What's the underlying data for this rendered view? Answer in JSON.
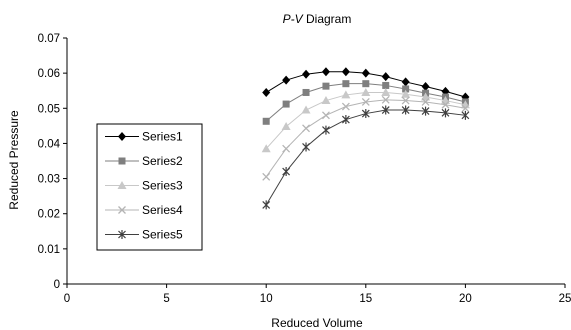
{
  "chart_data": {
    "type": "scatter",
    "title_italic": "P-V",
    "title_rest": " Diagram",
    "xlabel": "Reduced Volume",
    "ylabel": "Reduced Pressure",
    "xlim": [
      0,
      25
    ],
    "ylim": [
      0,
      0.07
    ],
    "xticks": [
      "0",
      "5",
      "10",
      "15",
      "20",
      "25"
    ],
    "yticks": [
      "0",
      "0.01",
      "0.02",
      "0.03",
      "0.04",
      "0.05",
      "0.06",
      "0.07"
    ],
    "grid": false,
    "legend_position": "left",
    "x": [
      10,
      11,
      12,
      13,
      14,
      15,
      16,
      17,
      18,
      19,
      20
    ],
    "series": [
      {
        "name": "Series1",
        "marker": "diamond",
        "color": "#000000",
        "values": [
          0.0545,
          0.058,
          0.0597,
          0.0604,
          0.0604,
          0.06,
          0.059,
          0.0575,
          0.0562,
          0.0548,
          0.0532
        ]
      },
      {
        "name": "Series2",
        "marker": "square",
        "color": "#7f7f7f",
        "values": [
          0.0463,
          0.0512,
          0.0545,
          0.0563,
          0.057,
          0.057,
          0.0565,
          0.0555,
          0.0543,
          0.0532,
          0.0518
        ]
      },
      {
        "name": "Series3",
        "marker": "triangle",
        "color": "#c8c8c8",
        "values": [
          0.0385,
          0.0448,
          0.0495,
          0.0522,
          0.0538,
          0.0545,
          0.0545,
          0.054,
          0.0532,
          0.0522,
          0.051
        ]
      },
      {
        "name": "Series4",
        "marker": "x",
        "color": "#b4b4b4",
        "values": [
          0.0305,
          0.0385,
          0.0443,
          0.048,
          0.0505,
          0.0518,
          0.0524,
          0.0522,
          0.0518,
          0.051,
          0.05
        ]
      },
      {
        "name": "Series5",
        "marker": "star",
        "color": "#404040",
        "values": [
          0.0225,
          0.032,
          0.039,
          0.0438,
          0.0468,
          0.0485,
          0.0495,
          0.0495,
          0.0492,
          0.0487,
          0.048
        ]
      }
    ]
  }
}
